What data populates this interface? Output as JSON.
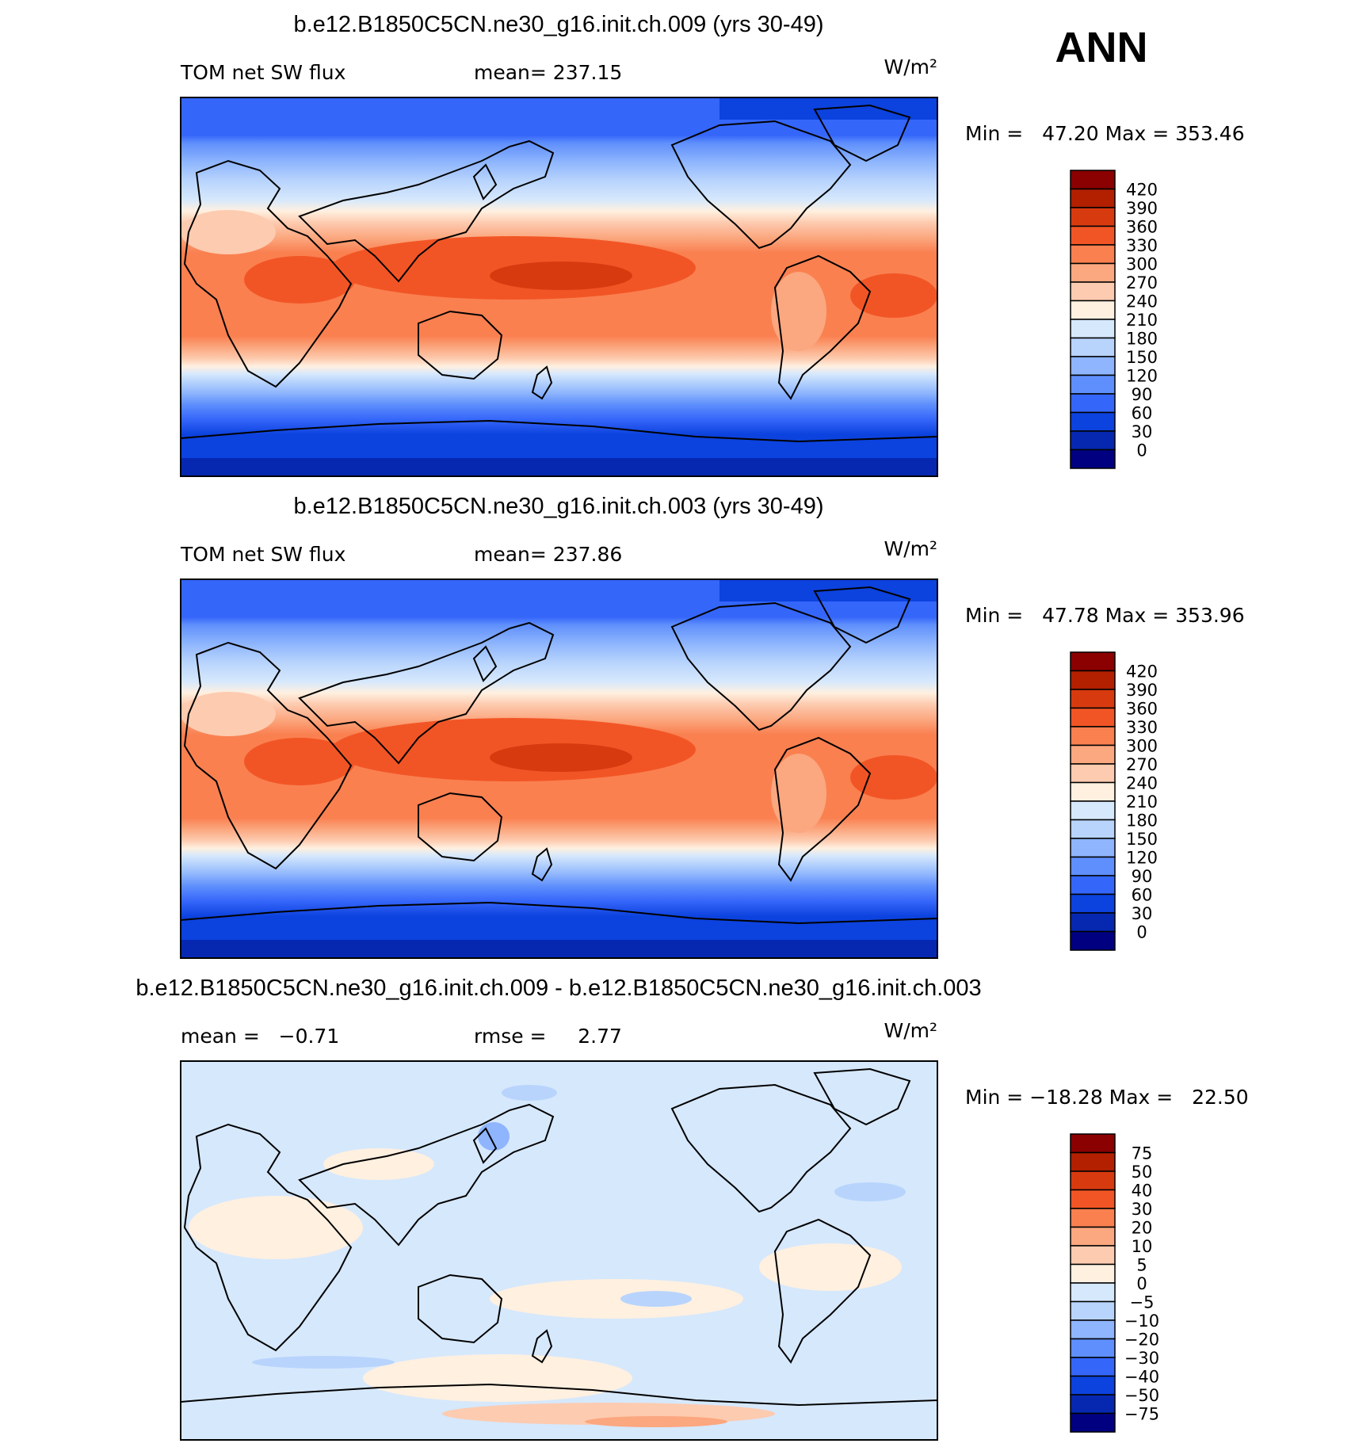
{
  "page_title": "ANN",
  "units_label": "W/m²",
  "panels": [
    {
      "title": "b.e12.B1850C5CN.ne30_g16.init.ch.009 (yrs 30-49)",
      "left_label": "TOM net SW flux",
      "center_label": "mean= 237.15",
      "range_label": "Min =   47.20 Max = 353.46",
      "colorbar_labels": [
        "420",
        "390",
        "360",
        "330",
        "300",
        "270",
        "240",
        "210",
        "180",
        "150",
        "120",
        "90",
        "60",
        "30",
        "0"
      ],
      "colorbar_colors": [
        "#8b0000",
        "#b22000",
        "#d83a10",
        "#f25525",
        "#fa8050",
        "#fba77f",
        "#fdcbb0",
        "#fff0e0",
        "#d6e8fc",
        "#b8d4fd",
        "#8eb5fd",
        "#5f8ffc",
        "#3566fa",
        "#0c42de",
        "#0628b0",
        "#000080"
      ]
    },
    {
      "title": "b.e12.B1850C5CN.ne30_g16.init.ch.003 (yrs 30-49)",
      "left_label": "TOM net SW flux",
      "center_label": "mean= 237.86",
      "range_label": "Min =   47.78 Max = 353.96",
      "colorbar_labels": [
        "420",
        "390",
        "360",
        "330",
        "300",
        "270",
        "240",
        "210",
        "180",
        "150",
        "120",
        "90",
        "60",
        "30",
        "0"
      ],
      "colorbar_colors": [
        "#8b0000",
        "#b22000",
        "#d83a10",
        "#f25525",
        "#fa8050",
        "#fba77f",
        "#fdcbb0",
        "#fff0e0",
        "#d6e8fc",
        "#b8d4fd",
        "#8eb5fd",
        "#5f8ffc",
        "#3566fa",
        "#0c42de",
        "#0628b0",
        "#000080"
      ]
    },
    {
      "title": "b.e12.B1850C5CN.ne30_g16.init.ch.009 - b.e12.B1850C5CN.ne30_g16.init.ch.003",
      "left_label": "mean =   −0.71",
      "center_label": "rmse =     2.77",
      "range_label": "Min = −18.28 Max =   22.50",
      "colorbar_labels": [
        "75",
        "50",
        "40",
        "30",
        "20",
        "10",
        "5",
        "0",
        "−5",
        "−10",
        "−20",
        "−30",
        "−40",
        "−50",
        "−75"
      ],
      "colorbar_colors": [
        "#8b0000",
        "#b22000",
        "#d83a10",
        "#f25525",
        "#fa8050",
        "#fba77f",
        "#fdcbb0",
        "#fff0e0",
        "#d6e8fc",
        "#b8d4fd",
        "#8eb5fd",
        "#5f8ffc",
        "#3566fa",
        "#0c42de",
        "#0628b0",
        "#000080"
      ]
    }
  ],
  "chart_data": [
    {
      "type": "heatmap",
      "title": "b.e12.B1850C5CN.ne30_g16.init.ch.009 (yrs 30-49)",
      "variable": "TOM net SW flux",
      "units": "W/m²",
      "mean": 237.15,
      "min": 47.2,
      "max": 353.46,
      "contour_levels": [
        0,
        30,
        60,
        90,
        120,
        150,
        180,
        210,
        240,
        270,
        300,
        330,
        360,
        390,
        420
      ]
    },
    {
      "type": "heatmap",
      "title": "b.e12.B1850C5CN.ne30_g16.init.ch.003 (yrs 30-49)",
      "variable": "TOM net SW flux",
      "units": "W/m²",
      "mean": 237.86,
      "min": 47.78,
      "max": 353.96,
      "contour_levels": [
        0,
        30,
        60,
        90,
        120,
        150,
        180,
        210,
        240,
        270,
        300,
        330,
        360,
        390,
        420
      ]
    },
    {
      "type": "heatmap",
      "title": "b.e12.B1850C5CN.ne30_g16.init.ch.009 - b.e12.B1850C5CN.ne30_g16.init.ch.003",
      "units": "W/m²",
      "mean": -0.71,
      "rmse": 2.77,
      "min": -18.28,
      "max": 22.5,
      "contour_levels": [
        -75,
        -50,
        -40,
        -30,
        -20,
        -10,
        -5,
        0,
        5,
        10,
        20,
        30,
        40,
        50,
        75
      ]
    }
  ]
}
